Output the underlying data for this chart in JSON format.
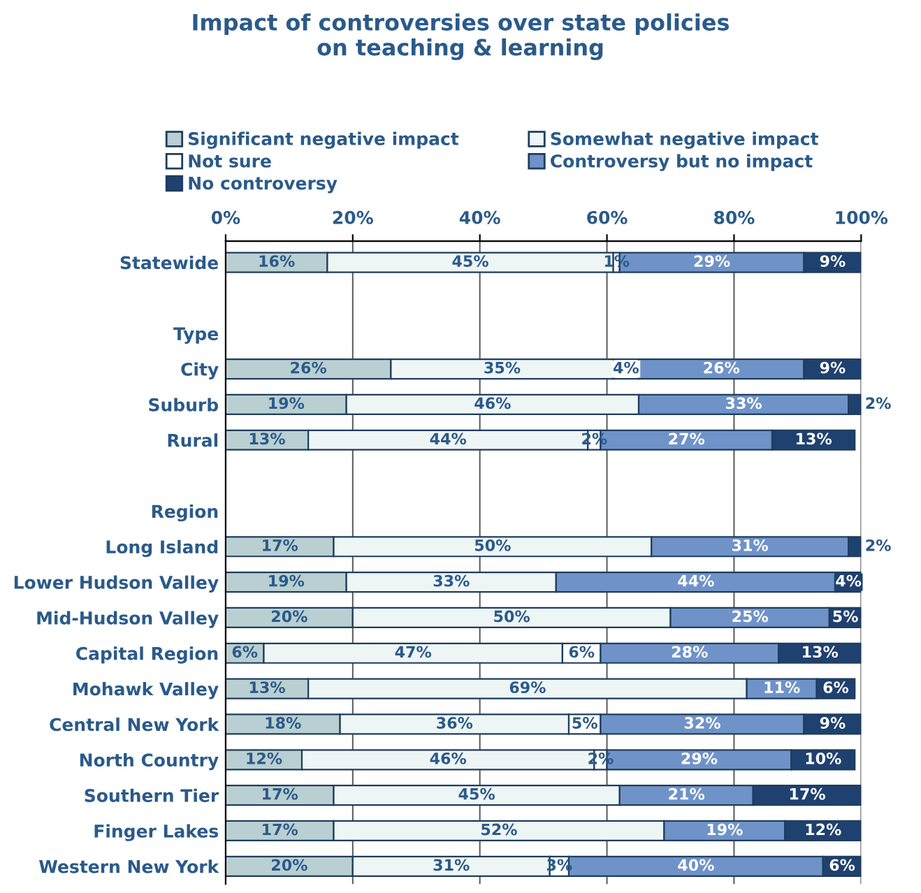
{
  "chart_data": {
    "type": "bar",
    "orientation": "horizontal",
    "stacked": true,
    "title": "Impact of controversies over state policies\non teaching & learning",
    "categories": [
      "Statewide",
      null,
      "Type",
      "City",
      "Suburb",
      "Rural",
      null,
      "Region",
      "Long Island",
      "Lower Hudson Valley",
      "Mid-Hudson Valley",
      "Capital Region",
      "Mohawk Valley",
      "Central New York",
      "North Country",
      "Southern Tier",
      "Finger Lakes",
      "Western New York"
    ],
    "series": [
      {
        "name": "Significant negative impact",
        "color": "#b9cfd1",
        "values": [
          16,
          null,
          null,
          26,
          19,
          13,
          null,
          null,
          17,
          19,
          20,
          6,
          13,
          18,
          12,
          17,
          17,
          20
        ],
        "value_labels": [
          "16%",
          null,
          null,
          "26%",
          "19%",
          "13%",
          null,
          null,
          "17%",
          "19%",
          "20%",
          "6%",
          "13%",
          "18%",
          "12%",
          "17%",
          "17%",
          "20%"
        ]
      },
      {
        "name": "Somewhat negative impact",
        "color": "#eef5f5",
        "values": [
          45,
          null,
          null,
          35,
          46,
          44,
          null,
          null,
          50,
          33,
          50,
          47,
          69,
          36,
          46,
          45,
          52,
          31
        ],
        "value_labels": [
          "45%",
          null,
          null,
          "35%",
          "46%",
          "44%",
          null,
          null,
          "50%",
          "33%",
          "50%",
          "47%",
          "69%",
          "36%",
          "46%",
          "45%",
          "52%",
          "31%"
        ]
      },
      {
        "name": "Not sure",
        "color": "#ffffff",
        "values": [
          1,
          null,
          null,
          4,
          null,
          2,
          null,
          null,
          null,
          null,
          null,
          6,
          null,
          5,
          2,
          null,
          null,
          3
        ],
        "value_labels": [
          "1%",
          null,
          null,
          "4%",
          null,
          "2%",
          null,
          null,
          null,
          null,
          null,
          "6%",
          null,
          "5%",
          "2%",
          null,
          null,
          "3%"
        ]
      },
      {
        "name": "Controversy but no impact",
        "color": "#6f93c8",
        "values": [
          29,
          null,
          null,
          26,
          33,
          27,
          null,
          null,
          31,
          44,
          25,
          28,
          11,
          32,
          29,
          21,
          19,
          40
        ],
        "value_labels": [
          "29%",
          null,
          null,
          "26%",
          "33%",
          "27%",
          null,
          null,
          "31%",
          "44%",
          "25%",
          "28%",
          "11%",
          "32%",
          "29%",
          "21%",
          "19%",
          "40%"
        ]
      },
      {
        "name": "No controversy",
        "color": "#1f416f",
        "values": [
          9,
          null,
          null,
          9,
          2,
          13,
          null,
          null,
          2,
          4,
          5,
          13,
          6,
          9,
          10,
          17,
          12,
          6
        ],
        "value_labels": [
          "9%",
          null,
          null,
          "9%",
          "2%",
          "13%",
          null,
          null,
          "2%",
          "4%",
          "5%",
          "13%",
          "6%",
          "9%",
          "10%",
          "17%",
          "12%",
          "6%"
        ]
      }
    ],
    "xlim": [
      0,
      100
    ],
    "xticks": [
      {
        "value": 0,
        "label": "0%"
      },
      {
        "value": 20,
        "label": "20%"
      },
      {
        "value": 40,
        "label": "40%"
      },
      {
        "value": 60,
        "label": "60%"
      },
      {
        "value": 80,
        "label": "80%"
      },
      {
        "value": 100,
        "label": "100%"
      }
    ],
    "grid": "x",
    "legend": "top"
  }
}
